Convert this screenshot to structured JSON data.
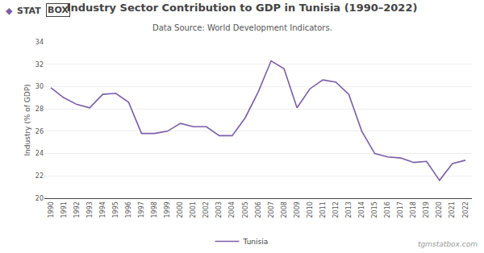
{
  "chart_data": {
    "type": "line",
    "title": "Industry Sector Contribution to GDP in Tunisia (1990–2022)",
    "subtitle": "Data Source: World Development Indicators.",
    "y_label": "Industry (% of GDP)",
    "annotations": [
      "◆",
      "STAT",
      "BOX",
      "tgmstatbox.com"
    ],
    "x": [
      1990,
      1991,
      1992,
      1993,
      1994,
      1995,
      1996,
      1997,
      1998,
      1999,
      2000,
      2001,
      2002,
      2003,
      2004,
      2005,
      2006,
      2007,
      2008,
      2009,
      2010,
      2011,
      2012,
      2013,
      2014,
      2015,
      2016,
      2017,
      2018,
      2019,
      2020,
      2021,
      2022
    ],
    "series": [
      {
        "name": "Tunisia",
        "color": "#7B5EA7",
        "values": [
          29.9,
          29.0,
          28.4,
          28.1,
          29.3,
          29.4,
          28.6,
          25.8,
          25.8,
          26.0,
          26.7,
          26.4,
          26.4,
          25.6,
          25.6,
          27.2,
          29.5,
          32.3,
          31.6,
          28.1,
          29.8,
          30.6,
          30.4,
          29.3,
          26.0,
          24.0,
          23.7,
          23.6,
          23.2,
          23.3,
          21.6,
          23.1,
          23.4
        ]
      }
    ],
    "xlim": [
      1989.5,
      2022.5
    ],
    "xticks": [
      1990,
      1991,
      1992,
      1993,
      1994,
      1995,
      1996,
      1997,
      1998,
      1999,
      2000,
      2001,
      2002,
      2003,
      2004,
      2005,
      2006,
      2007,
      2008,
      2009,
      2010,
      2011,
      2012,
      2013,
      2014,
      2015,
      2016,
      2017,
      2018,
      2019,
      2020,
      2021,
      2022
    ],
    "ylim": [
      20,
      34
    ],
    "yticks": [
      20,
      22,
      24,
      26,
      28,
      30,
      32,
      34
    ],
    "grid": "y",
    "legend": "bottom"
  }
}
